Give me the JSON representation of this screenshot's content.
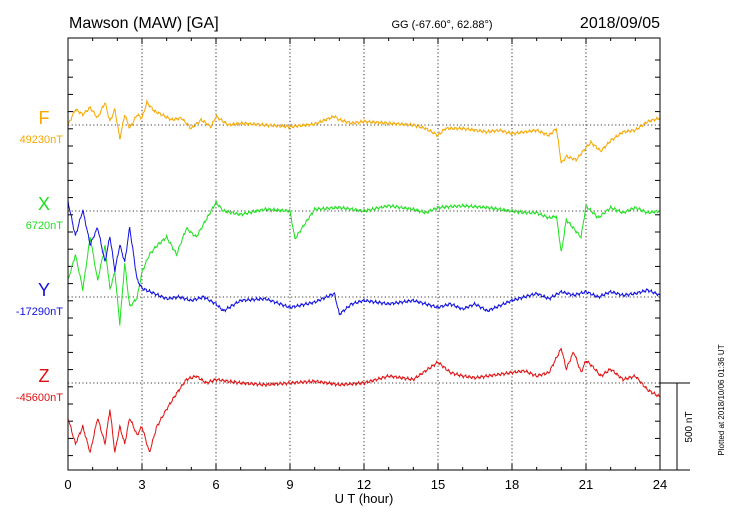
{
  "header": {
    "station": "Mawson (MAW)  [GA]",
    "coords": "GG (-67.60°,  62.88°)",
    "date": "2018/09/05"
  },
  "side_note": "Plotted at 2018/10/06 01:36 UT",
  "chart_data": {
    "type": "line",
    "xlabel": "U T (hour)",
    "xlim": [
      0,
      24
    ],
    "x_ticks": [
      0,
      3,
      6,
      9,
      12,
      15,
      18,
      21,
      24
    ],
    "grid": true,
    "scale_bar": {
      "label": "500 nT",
      "value_nT": 500
    },
    "series": [
      {
        "name": "F",
        "baseline_label": "49230nT",
        "color": "#f5a800",
        "x": [
          0,
          0.3,
          0.6,
          0.9,
          1.2,
          1.5,
          1.7,
          1.9,
          2.1,
          2.3,
          2.5,
          2.8,
          3.0,
          3.2,
          3.5,
          3.8,
          4.2,
          4.6,
          5.0,
          5.4,
          5.8,
          6.0,
          6.5,
          7.0,
          8.0,
          9.0,
          10.0,
          10.8,
          11.0,
          11.5,
          12.0,
          13.0,
          14.0,
          14.5,
          15.0,
          15.3,
          16.0,
          16.5,
          17.0,
          17.5,
          18.0,
          18.5,
          19.0,
          19.5,
          19.8,
          20.0,
          20.2,
          20.6,
          21.0,
          21.2,
          21.6,
          22.0,
          22.5,
          23.0,
          23.5,
          24.0
        ],
        "y": [
          0,
          90,
          60,
          100,
          40,
          130,
          20,
          90,
          -80,
          60,
          -20,
          60,
          40,
          130,
          80,
          60,
          30,
          40,
          -20,
          30,
          -10,
          50,
          0,
          10,
          0,
          -10,
          5,
          50,
          30,
          10,
          20,
          10,
          0,
          -20,
          -60,
          -20,
          -20,
          -30,
          -40,
          -30,
          -50,
          -40,
          -30,
          -60,
          -20,
          -220,
          -180,
          -200,
          -130,
          -100,
          -150,
          -90,
          -40,
          -30,
          20,
          40
        ]
      },
      {
        "name": "X",
        "baseline_label": "6720nT",
        "color": "#1ee01e",
        "x": [
          0,
          0.3,
          0.6,
          0.9,
          1.2,
          1.5,
          1.7,
          1.9,
          2.1,
          2.3,
          2.5,
          2.8,
          3.0,
          3.3,
          3.6,
          4.0,
          4.4,
          4.8,
          5.2,
          5.6,
          6.0,
          6.3,
          7.0,
          8.0,
          9.0,
          9.2,
          10.0,
          11.0,
          12.0,
          13.0,
          14.0,
          14.5,
          15.0,
          16.0,
          17.0,
          18.0,
          18.5,
          19.0,
          19.5,
          19.8,
          20.0,
          20.2,
          20.5,
          20.8,
          21.0,
          21.5,
          22.0,
          22.5,
          23.0,
          23.5,
          24.0
        ],
        "y": [
          -400,
          -250,
          -450,
          -150,
          -400,
          -200,
          -450,
          -350,
          -650,
          -300,
          -550,
          -500,
          -350,
          -250,
          -200,
          -150,
          -250,
          -100,
          -150,
          -50,
          50,
          0,
          -20,
          10,
          0,
          -160,
          10,
          20,
          0,
          30,
          10,
          -10,
          20,
          30,
          20,
          0,
          -10,
          -10,
          -40,
          -30,
          -240,
          -50,
          -100,
          -150,
          30,
          -40,
          20,
          -10,
          20,
          -10,
          0
        ]
      },
      {
        "name": "Y",
        "baseline_label": "-17290nT",
        "color": "#1010e0",
        "x": [
          0,
          0.3,
          0.6,
          0.9,
          1.2,
          1.5,
          1.7,
          1.9,
          2.1,
          2.3,
          2.5,
          2.8,
          3.0,
          3.5,
          4.0,
          4.5,
          5.0,
          5.5,
          6.0,
          6.3,
          7.0,
          8.0,
          9.0,
          10.0,
          10.8,
          11.0,
          11.5,
          12.0,
          13.0,
          14.0,
          15.0,
          15.5,
          16.0,
          16.5,
          17.0,
          18.0,
          18.5,
          19.0,
          19.5,
          20.0,
          20.5,
          21.0,
          21.5,
          22.0,
          22.5,
          23.0,
          23.5,
          24.0
        ],
        "y": [
          550,
          350,
          500,
          300,
          400,
          200,
          350,
          150,
          300,
          200,
          400,
          100,
          50,
          20,
          -10,
          0,
          -20,
          0,
          -40,
          -80,
          -20,
          -10,
          -60,
          -30,
          20,
          -100,
          -40,
          -20,
          -40,
          -20,
          -60,
          -40,
          -70,
          -40,
          -80,
          -20,
          0,
          20,
          -10,
          30,
          10,
          30,
          0,
          30,
          10,
          20,
          40,
          10
        ]
      },
      {
        "name": "Z",
        "baseline_label": "-45600nT",
        "color": "#e01010",
        "x": [
          0,
          0.3,
          0.6,
          0.9,
          1.2,
          1.5,
          1.7,
          1.9,
          2.1,
          2.3,
          2.5,
          2.8,
          3.0,
          3.3,
          3.6,
          4.0,
          4.4,
          4.8,
          5.2,
          5.6,
          6.0,
          6.5,
          7.0,
          8.0,
          9.0,
          10.0,
          11.0,
          12.0,
          13.0,
          14.0,
          15.0,
          15.5,
          16.0,
          16.5,
          17.0,
          18.0,
          18.5,
          19.0,
          19.5,
          20.0,
          20.2,
          20.5,
          20.8,
          21.0,
          21.3,
          21.6,
          22.0,
          22.5,
          23.0,
          23.5,
          24.0
        ],
        "y": [
          -200,
          -350,
          -250,
          -400,
          -200,
          -350,
          -150,
          -400,
          -250,
          -350,
          -200,
          -300,
          -250,
          -400,
          -250,
          -150,
          -60,
          20,
          40,
          0,
          20,
          10,
          0,
          -10,
          0,
          10,
          -10,
          0,
          40,
          20,
          120,
          60,
          40,
          30,
          40,
          60,
          70,
          40,
          60,
          200,
          80,
          180,
          60,
          130,
          90,
          40,
          80,
          20,
          40,
          -40,
          -80
        ]
      }
    ]
  }
}
